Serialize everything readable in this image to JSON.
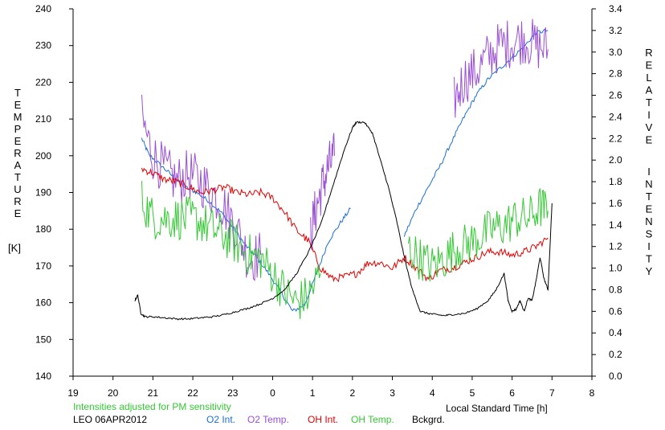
{
  "chart_data": {
    "type": "line",
    "left_axis": {
      "label_letters": [
        "T",
        "E",
        "M",
        "P",
        "E",
        "R",
        "A",
        "T",
        "U",
        "R",
        "E"
      ],
      "unit": "[K]",
      "range": [
        140,
        240
      ],
      "ticks": [
        "140",
        "150",
        "160",
        "170",
        "180",
        "190",
        "200",
        "210",
        "220",
        "230",
        "240"
      ]
    },
    "right_axis": {
      "label_word1": [
        "R",
        "E",
        "L",
        "A",
        "T",
        "I",
        "V",
        "E"
      ],
      "label_word2": [
        "I",
        "N",
        "T",
        "E",
        "N",
        "S",
        "I",
        "T",
        "Y"
      ],
      "range": [
        0.0,
        3.4
      ],
      "ticks": [
        "0.0",
        "0.2",
        "0.4",
        "0.6",
        "0.8",
        "1.0",
        "1.2",
        "1.4",
        "1.6",
        "1.8",
        "2.0",
        "2.2",
        "2.4",
        "2.6",
        "2.8",
        "3.0",
        "3.2",
        "3.4"
      ]
    },
    "x_axis": {
      "label": "Local Standard Time [h]",
      "range": [
        19,
        32
      ],
      "tick_positions": [
        19,
        20,
        21,
        22,
        23,
        24,
        25,
        26,
        27,
        28,
        29,
        30,
        31,
        32
      ],
      "ticks": [
        "19",
        "20",
        "21",
        "22",
        "23",
        "0",
        "1",
        "2",
        "3",
        "4",
        "5",
        "6",
        "7",
        "8"
      ]
    },
    "note": "Intensities adjusted for PM sensitivity",
    "station_date": "LEO 06APR2012",
    "legend": [
      {
        "label": "O2 Int.",
        "color": "#1a6fd6"
      },
      {
        "label": "O2 Temp.",
        "color": "#9b4fd6"
      },
      {
        "label": "OH Int.",
        "color": "#e00000"
      },
      {
        "label": "OH Temp.",
        "color": "#34c934"
      },
      {
        "label": "Bckgrd.",
        "color": "#000000"
      }
    ],
    "series": [
      {
        "name": "O2 Int.",
        "axis": "right",
        "color": "#1a6fd6",
        "noise": 0.02,
        "segments": [
          {
            "x": [
              20.72,
              20.9,
              21.2,
              21.5,
              21.8,
              22.1,
              22.4,
              22.7,
              23.0,
              23.3,
              23.6,
              23.9,
              24.2,
              24.5,
              24.8,
              25.1,
              25.4,
              25.7,
              25.95
            ],
            "y": [
              2.2,
              2.05,
              1.95,
              1.85,
              1.75,
              1.7,
              1.62,
              1.52,
              1.38,
              1.22,
              1.1,
              0.95,
              0.78,
              0.6,
              0.66,
              0.95,
              1.25,
              1.42,
              1.55
            ]
          },
          {
            "x": [
              27.3,
              27.6,
              27.9,
              28.2,
              28.5,
              28.8,
              29.1,
              29.4,
              29.7,
              30.0,
              30.3,
              30.6,
              30.9
            ],
            "y": [
              1.3,
              1.55,
              1.75,
              1.95,
              2.18,
              2.4,
              2.6,
              2.75,
              2.85,
              2.95,
              3.05,
              3.18,
              3.2
            ]
          }
        ]
      },
      {
        "name": "O2 Temp.",
        "axis": "left",
        "noise": 7,
        "color": "#9b4fd6",
        "segments": [
          {
            "x": [
              20.72,
              21.0,
              21.3,
              21.6,
              21.9,
              22.2,
              22.5,
              22.8,
              23.1,
              23.4,
              23.7
            ],
            "y": [
              210,
              200,
              196,
              193,
              195,
              193,
              190,
              186,
              180,
              172,
              173
            ]
          },
          {
            "x": [
              24.95,
              25.1,
              25.25,
              25.4,
              25.55
            ],
            "y": [
              179,
              186,
              192,
              197,
              200
            ]
          },
          {
            "x": [
              28.55,
              28.8,
              29.1,
              29.4,
              29.7,
              30.0,
              30.3,
              30.6,
              30.9
            ],
            "y": [
              215,
              221,
              223,
              227,
              230,
              231,
              232,
              230,
              229
            ]
          }
        ]
      },
      {
        "name": "OH Int.",
        "axis": "right",
        "noise": 0.035,
        "color": "#e00000",
        "segments": [
          {
            "x": [
              20.72,
              21.0,
              21.3,
              21.6,
              21.9,
              22.2,
              22.5,
              22.8,
              23.1,
              23.4,
              23.7,
              24.0,
              24.3,
              24.6,
              24.9,
              25.2,
              25.5,
              25.8,
              26.1,
              26.4,
              26.7,
              27.0,
              27.3,
              27.6,
              27.9,
              28.2,
              28.5,
              28.8,
              29.1,
              29.4,
              29.7,
              30.0,
              30.3,
              30.6,
              30.9
            ],
            "y": [
              1.92,
              1.88,
              1.82,
              1.8,
              1.75,
              1.7,
              1.72,
              1.75,
              1.7,
              1.68,
              1.7,
              1.65,
              1.52,
              1.35,
              1.25,
              1.0,
              0.9,
              0.92,
              0.95,
              1.05,
              1.05,
              1.0,
              1.1,
              1.0,
              0.9,
              0.98,
              1.0,
              1.05,
              1.1,
              1.15,
              1.15,
              1.12,
              1.15,
              1.2,
              1.28
            ]
          }
        ]
      },
      {
        "name": "OH Temp.",
        "axis": "left",
        "noise": 6,
        "color": "#34c934",
        "segments": [
          {
            "x": [
              20.72,
              21.0,
              21.3,
              21.6,
              21.9,
              22.2,
              22.5,
              22.8,
              23.1,
              23.4,
              23.7,
              24.0,
              24.3,
              24.6,
              24.9,
              25.2
            ],
            "y": [
              188,
              183,
              183,
              183,
              183,
              182,
              180,
              178,
              176,
              173,
              172,
              168,
              163,
              160,
              162,
              168
            ]
          },
          {
            "x": [
              27.4,
              27.7,
              28.0,
              28.3,
              28.6,
              28.9,
              29.2,
              29.5,
              29.8,
              30.1,
              30.4,
              30.7,
              30.9
            ],
            "y": [
              175,
              172,
              170,
              172,
              175,
              176,
              178,
              180,
              181,
              183,
              183,
              186,
              185
            ]
          }
        ]
      },
      {
        "name": "Bckgrd.",
        "axis": "right",
        "noise": 0.008,
        "color": "#000000",
        "segments": [
          {
            "x": [
              20.55,
              20.62,
              20.7,
              20.8,
              21.0,
              21.3,
              21.6,
              21.9,
              22.2,
              22.5,
              22.8,
              23.1,
              23.4,
              23.7,
              24.0,
              24.3,
              24.6,
              24.9,
              25.2,
              25.5,
              25.8,
              26.0,
              26.1,
              26.3,
              26.5,
              26.7,
              26.9,
              27.1,
              27.3,
              27.5,
              27.7,
              27.9,
              28.1,
              28.3,
              28.5,
              28.8,
              29.1,
              29.4,
              29.6,
              29.8,
              29.9,
              30.0,
              30.1,
              30.2,
              30.3,
              30.4,
              30.5,
              30.6,
              30.7,
              30.8,
              30.9,
              31.0
            ],
            "y": [
              0.7,
              0.75,
              0.58,
              0.55,
              0.55,
              0.54,
              0.53,
              0.53,
              0.54,
              0.55,
              0.57,
              0.6,
              0.63,
              0.67,
              0.72,
              0.8,
              0.95,
              1.15,
              1.4,
              1.75,
              2.1,
              2.3,
              2.35,
              2.35,
              2.25,
              2.0,
              1.75,
              1.45,
              1.1,
              0.8,
              0.6,
              0.58,
              0.57,
              0.56,
              0.57,
              0.58,
              0.62,
              0.7,
              0.8,
              0.95,
              0.7,
              0.6,
              0.62,
              0.7,
              0.6,
              0.72,
              0.7,
              0.88,
              1.1,
              0.9,
              0.8,
              1.6
            ]
          }
        ]
      }
    ]
  }
}
